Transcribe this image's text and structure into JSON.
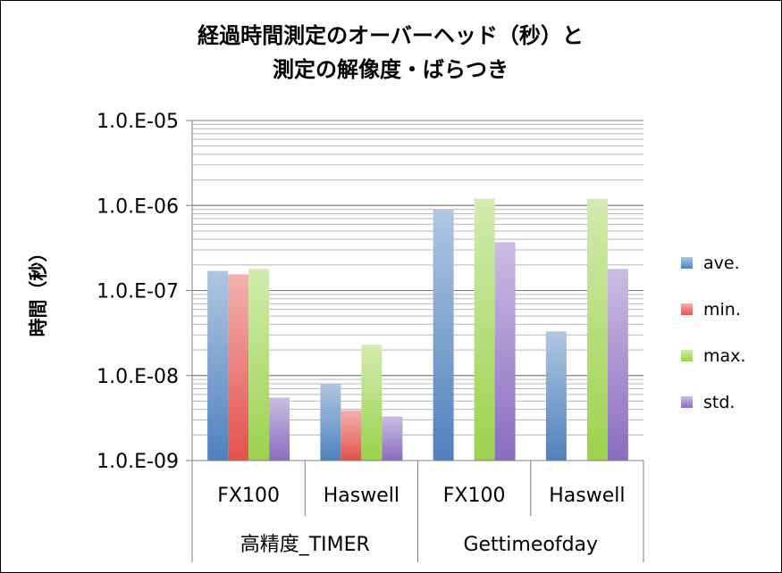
{
  "chart_data": {
    "type": "bar",
    "title_lines": [
      "経過時間測定のオーバーヘッド（秒）と",
      "測定の解像度・ばらつき"
    ],
    "ylabel": "時間（秒）",
    "yscale": "log",
    "ylim": [
      1e-09,
      1e-05
    ],
    "yticks": [
      "1.0.E-09",
      "1.0.E-08",
      "1.0.E-07",
      "1.0.E-06",
      "1.0.E-05"
    ],
    "ytick_values": [
      1e-09,
      1e-08,
      1e-07,
      1e-06,
      1e-05
    ],
    "minor_grid": true,
    "legend_position": "right",
    "groups": [
      {
        "label": "高精度_TIMER",
        "categories": [
          "FX100",
          "Haswell"
        ]
      },
      {
        "label": "Gettimeofday",
        "categories": [
          "FX100",
          "Haswell"
        ]
      }
    ],
    "categories": [
      "FX100",
      "Haswell",
      "FX100",
      "Haswell"
    ],
    "series": [
      {
        "name": "ave.",
        "color": "#4f81bd",
        "values": [
          1.7e-07,
          8e-09,
          8.9e-07,
          3.3e-08
        ]
      },
      {
        "name": "min.",
        "color": "#e3514c",
        "values": [
          1.55e-07,
          3.9e-09,
          null,
          null
        ]
      },
      {
        "name": "max.",
        "color": "#9bd24c",
        "values": [
          1.8e-07,
          2.3e-08,
          1.2e-06,
          1.2e-06
        ]
      },
      {
        "name": "std.",
        "color": "#8a6cc0",
        "values": [
          5.5e-09,
          3.3e-09,
          3.7e-07,
          1.8e-07
        ]
      }
    ]
  }
}
